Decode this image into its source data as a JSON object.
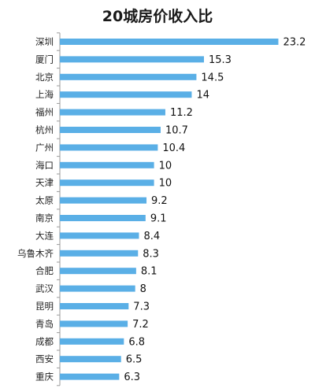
{
  "chart_data": {
    "type": "bar",
    "orientation": "horizontal",
    "title": "20城房价收入比",
    "categories": [
      "深圳",
      "厦门",
      "北京",
      "上海",
      "福州",
      "杭州",
      "广州",
      "海口",
      "天津",
      "太原",
      "南京",
      "大连",
      "乌鲁木齐",
      "合肥",
      "武汉",
      "昆明",
      "青岛",
      "成都",
      "西安",
      "重庆"
    ],
    "values": [
      23.2,
      15.3,
      14.5,
      14,
      11.2,
      10.7,
      10.4,
      10,
      10,
      9.2,
      9.1,
      8.4,
      8.3,
      8.1,
      8,
      7.3,
      7.2,
      6.8,
      6.5,
      6.3
    ],
    "value_labels": [
      "23.2",
      "15.3",
      "14.5",
      "14",
      "11.2",
      "10.7",
      "10.4",
      "10",
      "10",
      "9.2",
      "9.1",
      "8.4",
      "8.3",
      "8.1",
      "8",
      "7.3",
      "7.2",
      "6.8",
      "6.5",
      "6.3"
    ],
    "xlim": [
      0,
      25
    ],
    "grid": false,
    "legend": "none",
    "bar_color": "#5aafe6",
    "axis_color": "#9a9a9a"
  }
}
